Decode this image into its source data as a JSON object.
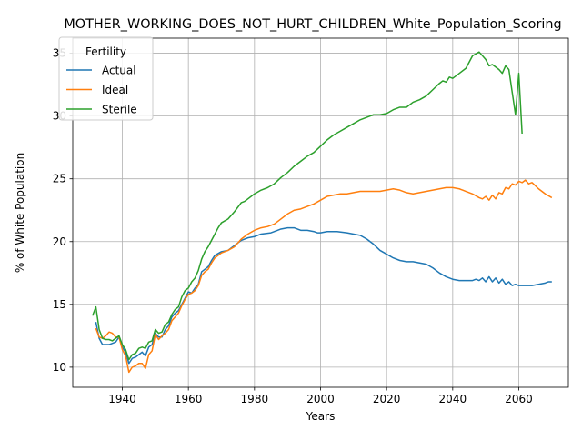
{
  "chart_data": {
    "type": "line",
    "title": "MOTHER_WORKING_DOES_NOT_HURT_CHILDREN_White_Population_Scoring",
    "xlabel": "Years",
    "ylabel": "% of White Population",
    "xlim": [
      1925,
      2075
    ],
    "ylim": [
      8.4,
      36.2
    ],
    "x_ticks": [
      1940,
      1960,
      1980,
      2000,
      2020,
      2040,
      2060
    ],
    "y_ticks": [
      10,
      15,
      20,
      25,
      30,
      35
    ],
    "grid": true,
    "legend": {
      "title": "Fertility",
      "placement": "top-left"
    },
    "series": [
      {
        "name": "Actual",
        "color": "#1f77b4",
        "points": [
          [
            1932,
            13.6
          ],
          [
            1933,
            12.3
          ],
          [
            1934,
            11.8
          ],
          [
            1936,
            11.8
          ],
          [
            1938,
            12.0
          ],
          [
            1939,
            12.4
          ],
          [
            1940,
            11.6
          ],
          [
            1941,
            11.2
          ],
          [
            1942,
            10.3
          ],
          [
            1943,
            10.7
          ],
          [
            1944,
            10.8
          ],
          [
            1945,
            11.0
          ],
          [
            1946,
            11.2
          ],
          [
            1947,
            10.9
          ],
          [
            1948,
            11.6
          ],
          [
            1949,
            11.8
          ],
          [
            1950,
            12.7
          ],
          [
            1951,
            12.4
          ],
          [
            1952,
            12.4
          ],
          [
            1953,
            13.0
          ],
          [
            1954,
            13.3
          ],
          [
            1955,
            14.0
          ],
          [
            1956,
            14.3
          ],
          [
            1957,
            14.5
          ],
          [
            1958,
            15.0
          ],
          [
            1959,
            15.5
          ],
          [
            1960,
            16.0
          ],
          [
            1961,
            15.9
          ],
          [
            1962,
            16.3
          ],
          [
            1963,
            16.6
          ],
          [
            1964,
            17.6
          ],
          [
            1965,
            17.8
          ],
          [
            1966,
            18.0
          ],
          [
            1967,
            18.5
          ],
          [
            1968,
            18.9
          ],
          [
            1970,
            19.2
          ],
          [
            1972,
            19.3
          ],
          [
            1974,
            19.7
          ],
          [
            1976,
            20.1
          ],
          [
            1978,
            20.3
          ],
          [
            1980,
            20.4
          ],
          [
            1982,
            20.6
          ],
          [
            1985,
            20.7
          ],
          [
            1988,
            21.0
          ],
          [
            1990,
            21.1
          ],
          [
            1992,
            21.1
          ],
          [
            1994,
            20.9
          ],
          [
            1996,
            20.9
          ],
          [
            1998,
            20.8
          ],
          [
            1999,
            20.7
          ],
          [
            2000,
            20.7
          ],
          [
            2002,
            20.8
          ],
          [
            2005,
            20.8
          ],
          [
            2008,
            20.7
          ],
          [
            2010,
            20.6
          ],
          [
            2012,
            20.5
          ],
          [
            2014,
            20.2
          ],
          [
            2016,
            19.8
          ],
          [
            2018,
            19.3
          ],
          [
            2020,
            19.0
          ],
          [
            2022,
            18.7
          ],
          [
            2024,
            18.5
          ],
          [
            2026,
            18.4
          ],
          [
            2028,
            18.4
          ],
          [
            2030,
            18.3
          ],
          [
            2032,
            18.2
          ],
          [
            2034,
            17.9
          ],
          [
            2036,
            17.5
          ],
          [
            2038,
            17.2
          ],
          [
            2040,
            17.0
          ],
          [
            2042,
            16.9
          ],
          [
            2044,
            16.9
          ],
          [
            2046,
            16.9
          ],
          [
            2047,
            17.0
          ],
          [
            2048,
            16.9
          ],
          [
            2049,
            17.1
          ],
          [
            2050,
            16.8
          ],
          [
            2051,
            17.2
          ],
          [
            2052,
            16.8
          ],
          [
            2053,
            17.1
          ],
          [
            2054,
            16.7
          ],
          [
            2055,
            17.0
          ],
          [
            2056,
            16.6
          ],
          [
            2057,
            16.8
          ],
          [
            2058,
            16.5
          ],
          [
            2059,
            16.6
          ],
          [
            2060,
            16.5
          ],
          [
            2062,
            16.5
          ],
          [
            2064,
            16.5
          ],
          [
            2066,
            16.6
          ],
          [
            2068,
            16.7
          ],
          [
            2069,
            16.8
          ],
          [
            2070,
            16.8
          ]
        ]
      },
      {
        "name": "Ideal",
        "color": "#ff7f0e",
        "points": [
          [
            1932,
            13.1
          ],
          [
            1933,
            12.4
          ],
          [
            1934,
            12.3
          ],
          [
            1935,
            12.5
          ],
          [
            1936,
            12.8
          ],
          [
            1937,
            12.7
          ],
          [
            1938,
            12.4
          ],
          [
            1939,
            12.4
          ],
          [
            1940,
            11.4
          ],
          [
            1941,
            10.9
          ],
          [
            1942,
            9.6
          ],
          [
            1943,
            10.0
          ],
          [
            1944,
            10.1
          ],
          [
            1945,
            10.3
          ],
          [
            1946,
            10.3
          ],
          [
            1947,
            9.9
          ],
          [
            1948,
            11.0
          ],
          [
            1949,
            11.3
          ],
          [
            1950,
            12.6
          ],
          [
            1951,
            12.2
          ],
          [
            1952,
            12.5
          ],
          [
            1953,
            12.7
          ],
          [
            1954,
            13.0
          ],
          [
            1955,
            13.7
          ],
          [
            1956,
            14.0
          ],
          [
            1957,
            14.3
          ],
          [
            1958,
            14.9
          ],
          [
            1959,
            15.4
          ],
          [
            1960,
            15.8
          ],
          [
            1961,
            15.9
          ],
          [
            1962,
            16.1
          ],
          [
            1963,
            16.5
          ],
          [
            1964,
            17.3
          ],
          [
            1965,
            17.6
          ],
          [
            1966,
            17.8
          ],
          [
            1967,
            18.3
          ],
          [
            1968,
            18.7
          ],
          [
            1970,
            19.1
          ],
          [
            1972,
            19.3
          ],
          [
            1974,
            19.6
          ],
          [
            1976,
            20.2
          ],
          [
            1978,
            20.6
          ],
          [
            1980,
            20.9
          ],
          [
            1982,
            21.1
          ],
          [
            1984,
            21.2
          ],
          [
            1986,
            21.4
          ],
          [
            1988,
            21.8
          ],
          [
            1990,
            22.2
          ],
          [
            1992,
            22.5
          ],
          [
            1994,
            22.6
          ],
          [
            1996,
            22.8
          ],
          [
            1998,
            23.0
          ],
          [
            2000,
            23.3
          ],
          [
            2002,
            23.6
          ],
          [
            2004,
            23.7
          ],
          [
            2006,
            23.8
          ],
          [
            2008,
            23.8
          ],
          [
            2010,
            23.9
          ],
          [
            2012,
            24.0
          ],
          [
            2014,
            24.0
          ],
          [
            2016,
            24.0
          ],
          [
            2018,
            24.0
          ],
          [
            2020,
            24.1
          ],
          [
            2022,
            24.2
          ],
          [
            2024,
            24.1
          ],
          [
            2026,
            23.9
          ],
          [
            2028,
            23.8
          ],
          [
            2030,
            23.9
          ],
          [
            2032,
            24.0
          ],
          [
            2034,
            24.1
          ],
          [
            2036,
            24.2
          ],
          [
            2038,
            24.3
          ],
          [
            2040,
            24.3
          ],
          [
            2042,
            24.2
          ],
          [
            2044,
            24.0
          ],
          [
            2046,
            23.8
          ],
          [
            2048,
            23.5
          ],
          [
            2049,
            23.4
          ],
          [
            2050,
            23.6
          ],
          [
            2051,
            23.3
          ],
          [
            2052,
            23.7
          ],
          [
            2053,
            23.4
          ],
          [
            2054,
            23.9
          ],
          [
            2055,
            23.8
          ],
          [
            2056,
            24.3
          ],
          [
            2057,
            24.2
          ],
          [
            2058,
            24.6
          ],
          [
            2059,
            24.5
          ],
          [
            2060,
            24.8
          ],
          [
            2061,
            24.7
          ],
          [
            2062,
            24.9
          ],
          [
            2063,
            24.6
          ],
          [
            2064,
            24.7
          ],
          [
            2066,
            24.2
          ],
          [
            2068,
            23.8
          ],
          [
            2070,
            23.5
          ]
        ]
      },
      {
        "name": "Sterile",
        "color": "#2ca02c",
        "points": [
          [
            1931,
            14.1
          ],
          [
            1932,
            14.8
          ],
          [
            1933,
            13.0
          ],
          [
            1934,
            12.3
          ],
          [
            1935,
            12.2
          ],
          [
            1936,
            12.2
          ],
          [
            1937,
            12.1
          ],
          [
            1938,
            12.3
          ],
          [
            1939,
            12.5
          ],
          [
            1940,
            11.8
          ],
          [
            1941,
            11.4
          ],
          [
            1942,
            10.6
          ],
          [
            1943,
            11.0
          ],
          [
            1944,
            11.1
          ],
          [
            1945,
            11.5
          ],
          [
            1946,
            11.6
          ],
          [
            1947,
            11.5
          ],
          [
            1948,
            12.0
          ],
          [
            1949,
            12.1
          ],
          [
            1950,
            13.0
          ],
          [
            1951,
            12.7
          ],
          [
            1952,
            12.8
          ],
          [
            1953,
            13.4
          ],
          [
            1954,
            13.6
          ],
          [
            1955,
            14.2
          ],
          [
            1956,
            14.6
          ],
          [
            1957,
            14.8
          ],
          [
            1958,
            15.6
          ],
          [
            1959,
            16.1
          ],
          [
            1960,
            16.3
          ],
          [
            1961,
            16.8
          ],
          [
            1962,
            17.1
          ],
          [
            1963,
            17.7
          ],
          [
            1964,
            18.6
          ],
          [
            1965,
            19.2
          ],
          [
            1966,
            19.6
          ],
          [
            1967,
            20.1
          ],
          [
            1968,
            20.6
          ],
          [
            1969,
            21.1
          ],
          [
            1970,
            21.5
          ],
          [
            1972,
            21.8
          ],
          [
            1974,
            22.4
          ],
          [
            1976,
            23.1
          ],
          [
            1977,
            23.2
          ],
          [
            1978,
            23.4
          ],
          [
            1980,
            23.8
          ],
          [
            1982,
            24.1
          ],
          [
            1984,
            24.3
          ],
          [
            1986,
            24.6
          ],
          [
            1988,
            25.1
          ],
          [
            1990,
            25.5
          ],
          [
            1992,
            26.0
          ],
          [
            1994,
            26.4
          ],
          [
            1996,
            26.8
          ],
          [
            1998,
            27.1
          ],
          [
            2000,
            27.6
          ],
          [
            2002,
            28.1
          ],
          [
            2004,
            28.5
          ],
          [
            2006,
            28.8
          ],
          [
            2008,
            29.1
          ],
          [
            2010,
            29.4
          ],
          [
            2012,
            29.7
          ],
          [
            2014,
            29.9
          ],
          [
            2016,
            30.1
          ],
          [
            2018,
            30.1
          ],
          [
            2020,
            30.2
          ],
          [
            2022,
            30.5
          ],
          [
            2024,
            30.7
          ],
          [
            2026,
            30.7
          ],
          [
            2028,
            31.1
          ],
          [
            2030,
            31.3
          ],
          [
            2032,
            31.6
          ],
          [
            2034,
            32.1
          ],
          [
            2036,
            32.6
          ],
          [
            2037,
            32.8
          ],
          [
            2038,
            32.7
          ],
          [
            2039,
            33.1
          ],
          [
            2040,
            33.0
          ],
          [
            2041,
            33.2
          ],
          [
            2042,
            33.4
          ],
          [
            2044,
            33.8
          ],
          [
            2046,
            34.8
          ],
          [
            2048,
            35.1
          ],
          [
            2050,
            34.5
          ],
          [
            2051,
            34.0
          ],
          [
            2052,
            34.1
          ],
          [
            2054,
            33.7
          ],
          [
            2055,
            33.4
          ],
          [
            2056,
            34.0
          ],
          [
            2057,
            33.7
          ],
          [
            2058,
            31.9
          ],
          [
            2059,
            30.1
          ],
          [
            2060,
            33.4
          ],
          [
            2061,
            28.6
          ]
        ]
      }
    ]
  }
}
